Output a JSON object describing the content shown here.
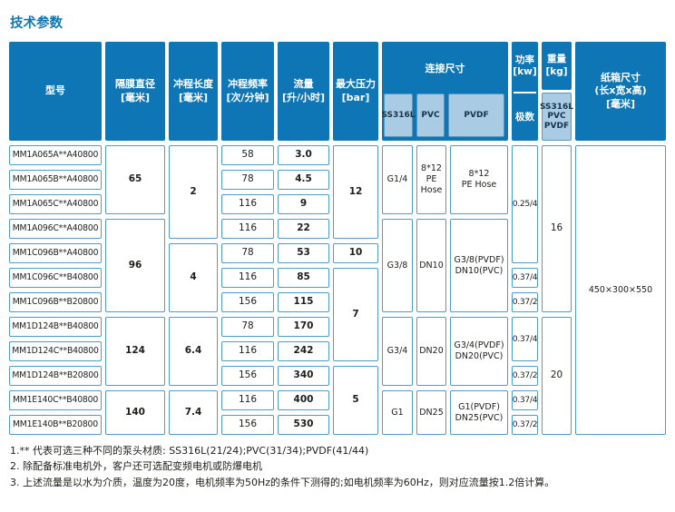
{
  "page": {
    "title": "技术参数"
  },
  "colors": {
    "accent": "#0e76b5",
    "subheader": "#a9cbe4",
    "cell_border": "#4d9dcc"
  },
  "table": {
    "headers": {
      "model": {
        "label": "型号"
      },
      "diameter": {
        "label": "隔膜直径",
        "unit": "[毫米]"
      },
      "stroke": {
        "label": "冲程长度",
        "unit": "[毫米]"
      },
      "frequency": {
        "label": "冲程频率",
        "unit": "[次/分钟]"
      },
      "flow": {
        "label": "流量",
        "unit": "[升/小时]"
      },
      "pressure": {
        "label": "最大压力",
        "unit": "[bar]"
      },
      "connection": {
        "label": "连接尺寸",
        "subs": [
          "SS316L",
          "PVC",
          "PVDF"
        ]
      },
      "power": {
        "label": "功率",
        "unit": "[kw]",
        "sub": "极数"
      },
      "weight": {
        "label": "重量",
        "unit": "[kg]",
        "sub": "SS316L\nPVC\nPVDF"
      },
      "carton": {
        "label": "纸箱尺寸\n(长x宽x高)\n[毫米]"
      }
    },
    "rows": [
      {
        "model": "MM1A065A**A40800",
        "freq": "58",
        "flow": "3.0"
      },
      {
        "model": "MM1A065B**A40800",
        "freq": "78",
        "flow": "4.5"
      },
      {
        "model": "MM1A065C**A40800",
        "freq": "116",
        "flow": "9"
      },
      {
        "model": "MM1A096C**A40800",
        "freq": "116",
        "flow": "22"
      },
      {
        "model": "MM1C096B**A40800",
        "freq": "78",
        "flow": "53"
      },
      {
        "model": "MM1C096C**B40800",
        "freq": "116",
        "flow": "85"
      },
      {
        "model": "MM1C096B**B20800",
        "freq": "156",
        "flow": "115"
      },
      {
        "model": "MM1D124B**B40800",
        "freq": "78",
        "flow": "170"
      },
      {
        "model": "MM1D124C**B40800",
        "freq": "116",
        "flow": "242"
      },
      {
        "model": "MM1D124B**B20800",
        "freq": "156",
        "flow": "340"
      },
      {
        "model": "MM1E140C**B40800",
        "freq": "116",
        "flow": "400"
      },
      {
        "model": "MM1E140B**B20800",
        "freq": "156",
        "flow": "530"
      }
    ],
    "diameter_groups": [
      {
        "value": "65",
        "rows": "1-3"
      },
      {
        "value": "96",
        "rows": "4-7"
      },
      {
        "value": "124",
        "rows": "8-10"
      },
      {
        "value": "140",
        "rows": "11-12"
      }
    ],
    "stroke_groups": [
      {
        "value": "2",
        "rows": "1-4"
      },
      {
        "value": "4",
        "rows": "5-7"
      },
      {
        "value": "6.4",
        "rows": "8-10"
      },
      {
        "value": "7.4",
        "rows": "11-12"
      }
    ],
    "pressure_groups": [
      {
        "value": "12",
        "rows": "1-4"
      },
      {
        "value": "10",
        "rows": "5"
      },
      {
        "value": "7",
        "rows": "6-9"
      },
      {
        "value": "5",
        "rows": "10-12"
      }
    ],
    "connection_groups": [
      {
        "ss316l": "G1/4",
        "pvc": "8*12\nPE\nHose",
        "pvdf": "8*12\nPE Hose",
        "rows": "1-3"
      },
      {
        "ss316l": "G3/8",
        "pvc": "DN10",
        "pvdf": "G3/8(PVDF)\nDN10(PVC)",
        "rows": "4-7"
      },
      {
        "ss316l": "G3/4",
        "pvc": "DN20",
        "pvdf": "G3/4(PVDF)\nDN20(PVC)",
        "rows": "8-10"
      },
      {
        "ss316l": "G1",
        "pvc": "DN25",
        "pvdf": "G1(PVDF)\nDN25(PVC)",
        "rows": "11-12"
      }
    ],
    "power_groups": [
      {
        "value": "0.25/4",
        "rows": "1-5"
      },
      {
        "value": "0.37/4",
        "rows": "6"
      },
      {
        "value": "0.37/2",
        "rows": "7"
      },
      {
        "value": "0.37/4",
        "rows": "8-9"
      },
      {
        "value": "0.37/2",
        "rows": "10"
      },
      {
        "value": "0.37/4",
        "rows": "11"
      },
      {
        "value": "0.37/2",
        "rows": "12"
      }
    ],
    "weight_groups": [
      {
        "value": "16",
        "rows": "1-7"
      },
      {
        "value": "20",
        "rows": "8-12"
      }
    ],
    "carton_value": "450×300×550"
  },
  "notes": [
    "1.** 代表可选三种不同的泵头材质: SS316L(21/24);PVC(31/34);PVDF(41/44)",
    "2. 除配备标准电机外，客户还可选配变频电机或防爆电机",
    "3. 上述流量是以水为介质，温度为20度，电机频率为50Hz的条件下测得的;如电机频率为60Hz，则对应流量按1.2倍计算。"
  ]
}
